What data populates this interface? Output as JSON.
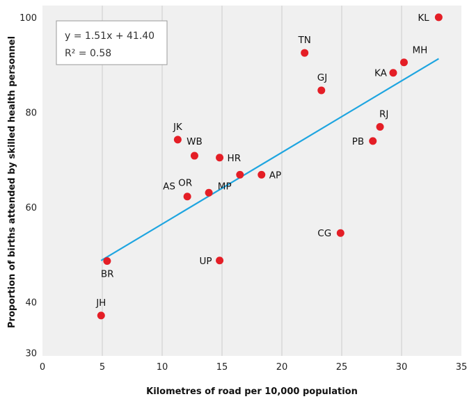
{
  "chart_data": {
    "type": "scatter",
    "xlabel": "Kilometres of road per 10,000 population",
    "ylabel": "Proportion of births attended by skilled health personnel",
    "xlim": [
      0,
      35
    ],
    "ylim": [
      30,
      100
    ],
    "x_ticks": [
      "0",
      "5",
      "10",
      "15",
      "20",
      "25",
      "30",
      "35"
    ],
    "y_ticks": [
      "30",
      "40",
      "60",
      "80",
      "100"
    ],
    "grid": "vertical",
    "points": [
      {
        "label": "KL",
        "x": 33.1,
        "y": 100.1
      },
      {
        "label": "TN",
        "x": 21.9,
        "y": 92.6
      },
      {
        "label": "MH",
        "x": 30.2,
        "y": 90.6
      },
      {
        "label": "KA",
        "x": 29.3,
        "y": 88.4
      },
      {
        "label": "GJ",
        "x": 23.3,
        "y": 84.7
      },
      {
        "label": "RJ",
        "x": 28.2,
        "y": 77.0
      },
      {
        "label": "PB",
        "x": 27.6,
        "y": 74.0
      },
      {
        "label": "JK",
        "x": 11.3,
        "y": 74.3
      },
      {
        "label": "WB",
        "x": 12.7,
        "y": 70.9
      },
      {
        "label": "HR",
        "x": 14.8,
        "y": 70.5
      },
      {
        "label": "MP",
        "x": 16.5,
        "y": 66.9
      },
      {
        "label": "AP",
        "x": 18.3,
        "y": 66.9
      },
      {
        "label": "OR",
        "x": 13.9,
        "y": 63.1
      },
      {
        "label": "AS",
        "x": 12.1,
        "y": 62.3
      },
      {
        "label": "CG",
        "x": 24.9,
        "y": 54.6
      },
      {
        "label": "UP",
        "x": 14.8,
        "y": 48.8
      },
      {
        "label": "BR",
        "x": 5.4,
        "y": 48.7
      },
      {
        "label": "JH",
        "x": 4.9,
        "y": 37.2
      }
    ],
    "trendline": {
      "equation": "y = 1.51x + 41.40",
      "r_squared": "R² = 0.58",
      "slope": 1.51,
      "intercept": 41.4,
      "x_range": [
        4.9,
        33.1
      ]
    },
    "colors": {
      "points": "#e41e26",
      "trendline": "#1ea5e0",
      "plot_background": "#f0f0f0",
      "gridline": "#cccccc"
    }
  }
}
